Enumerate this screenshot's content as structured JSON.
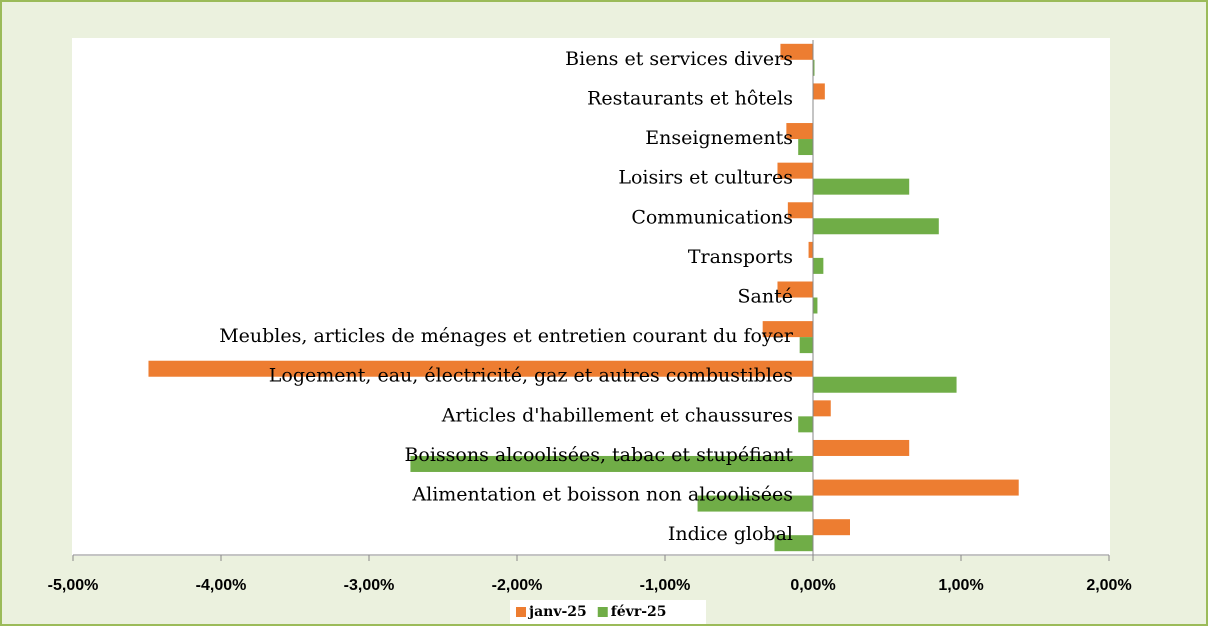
{
  "chart_data": {
    "type": "hbar",
    "categories": [
      "Indice global",
      "Alimentation et boisson non alcoolisées",
      "Boissons alcoolisées, tabac et stupéfiant",
      "Articles d'habillement et chaussures",
      "Logement, eau, électricité, gaz et autres combustibles",
      "Meubles, articles de ménages et entretien courant du foyer",
      "Santé",
      "Transports",
      "Communications",
      "Loisirs et cultures",
      "Enseignements",
      "Restaurants et hôtels",
      "Biens et services divers"
    ],
    "series": [
      {
        "name": "janv-25",
        "color": "#ed7d31",
        "values": [
          0.25,
          1.39,
          0.65,
          0.12,
          -4.49,
          -0.34,
          -0.24,
          -0.03,
          -0.17,
          -0.24,
          -0.18,
          0.08,
          -0.22
        ]
      },
      {
        "name": "févr-25",
        "color": "#70ad47",
        "values": [
          -0.26,
          -0.78,
          -2.72,
          -0.1,
          0.97,
          -0.09,
          0.03,
          0.07,
          0.85,
          0.65,
          -0.1,
          0.0,
          0.01
        ]
      }
    ],
    "xlim": [
      -5,
      2
    ],
    "xticks": [
      {
        "value": -5,
        "label": "-5,00%"
      },
      {
        "value": -4,
        "label": "-4,00%"
      },
      {
        "value": -3,
        "label": "-3,00%"
      },
      {
        "value": -2,
        "label": "-2,00%"
      },
      {
        "value": -1,
        "label": "-1,00%"
      },
      {
        "value": 0,
        "label": "0,00%"
      },
      {
        "value": 1,
        "label": "1,00%"
      },
      {
        "value": 2,
        "label": "2,00%"
      }
    ],
    "legend": "bottom"
  }
}
